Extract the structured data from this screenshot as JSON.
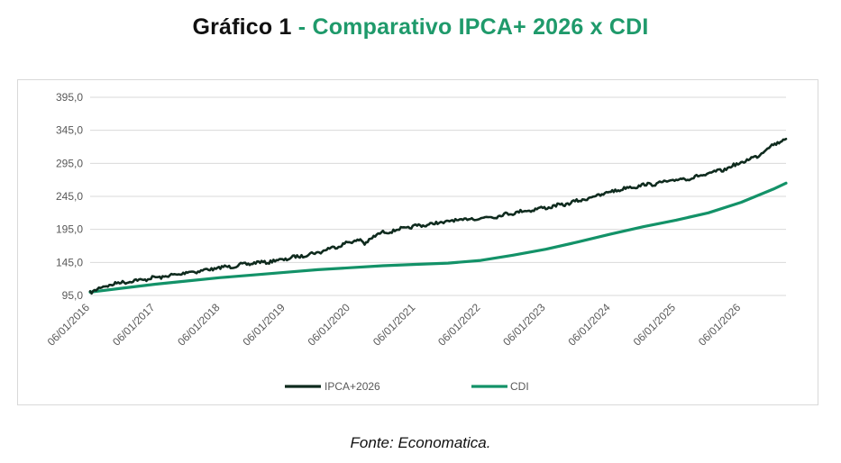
{
  "title": {
    "part1": "Gráfico 1",
    "part2": "- Comparativo IPCA+ 2026 x CDI"
  },
  "source": "Fonte: Economatica.",
  "colors": {
    "ipca": "#0f2b1e",
    "cdi": "#139268",
    "title_accent": "#1f9a6b",
    "grid": "#d9d9d9",
    "tick_text": "#595959"
  },
  "chart_data": {
    "type": "line",
    "title": "",
    "xlabel": "",
    "ylabel": "",
    "ylim": [
      95,
      395
    ],
    "yticks": [
      "95,0",
      "145,0",
      "195,0",
      "245,0",
      "295,0",
      "345,0",
      "395,0"
    ],
    "ytick_values": [
      95,
      145,
      195,
      245,
      295,
      345,
      395
    ],
    "xticks": [
      "06/01/2016",
      "06/01/2017",
      "06/01/2018",
      "06/01/2019",
      "06/01/2020",
      "06/01/2021",
      "06/01/2022",
      "06/01/2023",
      "06/01/2024",
      "06/01/2025",
      "06/01/2026"
    ],
    "xlim": [
      "2016-01-06",
      "2026-09-15"
    ],
    "grid": "horizontal",
    "legend": "bottom",
    "series": [
      {
        "name": "IPCA+2026",
        "x": [
          "2016-01-06",
          "2016-04-06",
          "2016-07-06",
          "2016-10-06",
          "2017-01-06",
          "2017-04-06",
          "2017-07-06",
          "2017-10-06",
          "2018-01-06",
          "2018-04-06",
          "2018-07-06",
          "2018-10-06",
          "2019-01-06",
          "2019-04-06",
          "2019-07-06",
          "2019-10-06",
          "2020-01-06",
          "2020-03-01",
          "2020-03-25",
          "2020-05-15",
          "2020-07-06",
          "2020-10-06",
          "2021-01-06",
          "2021-04-06",
          "2021-07-06",
          "2021-10-06",
          "2022-01-06",
          "2022-04-06",
          "2022-07-06",
          "2022-10-06",
          "2023-01-06",
          "2023-04-06",
          "2023-07-06",
          "2023-10-06",
          "2024-01-06",
          "2024-04-06",
          "2024-07-06",
          "2024-10-06",
          "2025-01-06",
          "2025-04-06",
          "2025-07-06",
          "2025-10-06",
          "2026-01-06",
          "2026-04-06",
          "2026-07-06",
          "2026-09-15"
        ],
        "values": [
          100,
          110,
          115,
          118,
          122,
          125,
          130,
          133,
          137,
          140,
          144,
          146,
          150,
          155,
          160,
          168,
          176,
          180,
          172,
          185,
          190,
          195,
          200,
          203,
          207,
          210,
          212,
          215,
          220,
          224,
          228,
          232,
          238,
          245,
          252,
          258,
          262,
          265,
          270,
          273,
          279,
          286,
          296,
          306,
          324,
          332
        ]
      },
      {
        "name": "CDI",
        "x": [
          "2016-01-06",
          "2016-07-06",
          "2017-01-06",
          "2017-07-06",
          "2018-01-06",
          "2018-07-06",
          "2019-01-06",
          "2019-07-06",
          "2020-01-06",
          "2020-07-06",
          "2021-01-06",
          "2021-07-06",
          "2022-01-06",
          "2022-07-06",
          "2023-01-06",
          "2023-07-06",
          "2024-01-06",
          "2024-07-06",
          "2025-01-06",
          "2025-07-06",
          "2026-01-06",
          "2026-07-06",
          "2026-09-15"
        ],
        "values": [
          100,
          106,
          112,
          117,
          122,
          126,
          130,
          134,
          137,
          140,
          142,
          144,
          148,
          156,
          165,
          176,
          188,
          199,
          209,
          220,
          236,
          256,
          265
        ]
      }
    ]
  }
}
